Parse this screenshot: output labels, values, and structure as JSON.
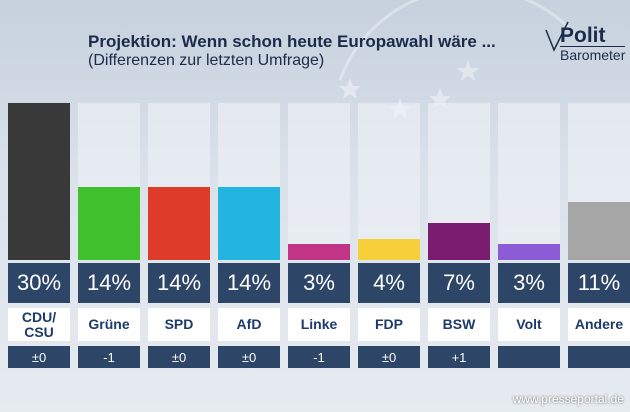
{
  "chart_data": {
    "type": "bar",
    "title": "Projektion: Wenn schon heute Europawahl wäre ...",
    "subtitle": "(Differenzen zur letzten Umfrage)",
    "categories": [
      "CDU/\nCSU",
      "Grüne",
      "SPD",
      "AfD",
      "Linke",
      "FDP",
      "BSW",
      "Volt",
      "Andere"
    ],
    "values": [
      30,
      14,
      14,
      14,
      3,
      4,
      7,
      3,
      11
    ],
    "value_labels": [
      "30%",
      "14%",
      "14%",
      "14%",
      "3%",
      "4%",
      "7%",
      "3%",
      "11%"
    ],
    "changes": [
      "±0",
      "-1",
      "±0",
      "±0",
      "-1",
      "±0",
      "+1",
      null,
      null
    ],
    "colors": [
      "#393939",
      "#3fc02c",
      "#df3b2b",
      "#22b5df",
      "#c23485",
      "#f6cf3a",
      "#7a1c6f",
      "#8c5cd6",
      "#a6a6a6"
    ],
    "ylim": [
      0,
      30
    ]
  },
  "brand": {
    "line1": "Polit",
    "line2": "Barometer"
  },
  "watermark": "www.presseportal.de"
}
